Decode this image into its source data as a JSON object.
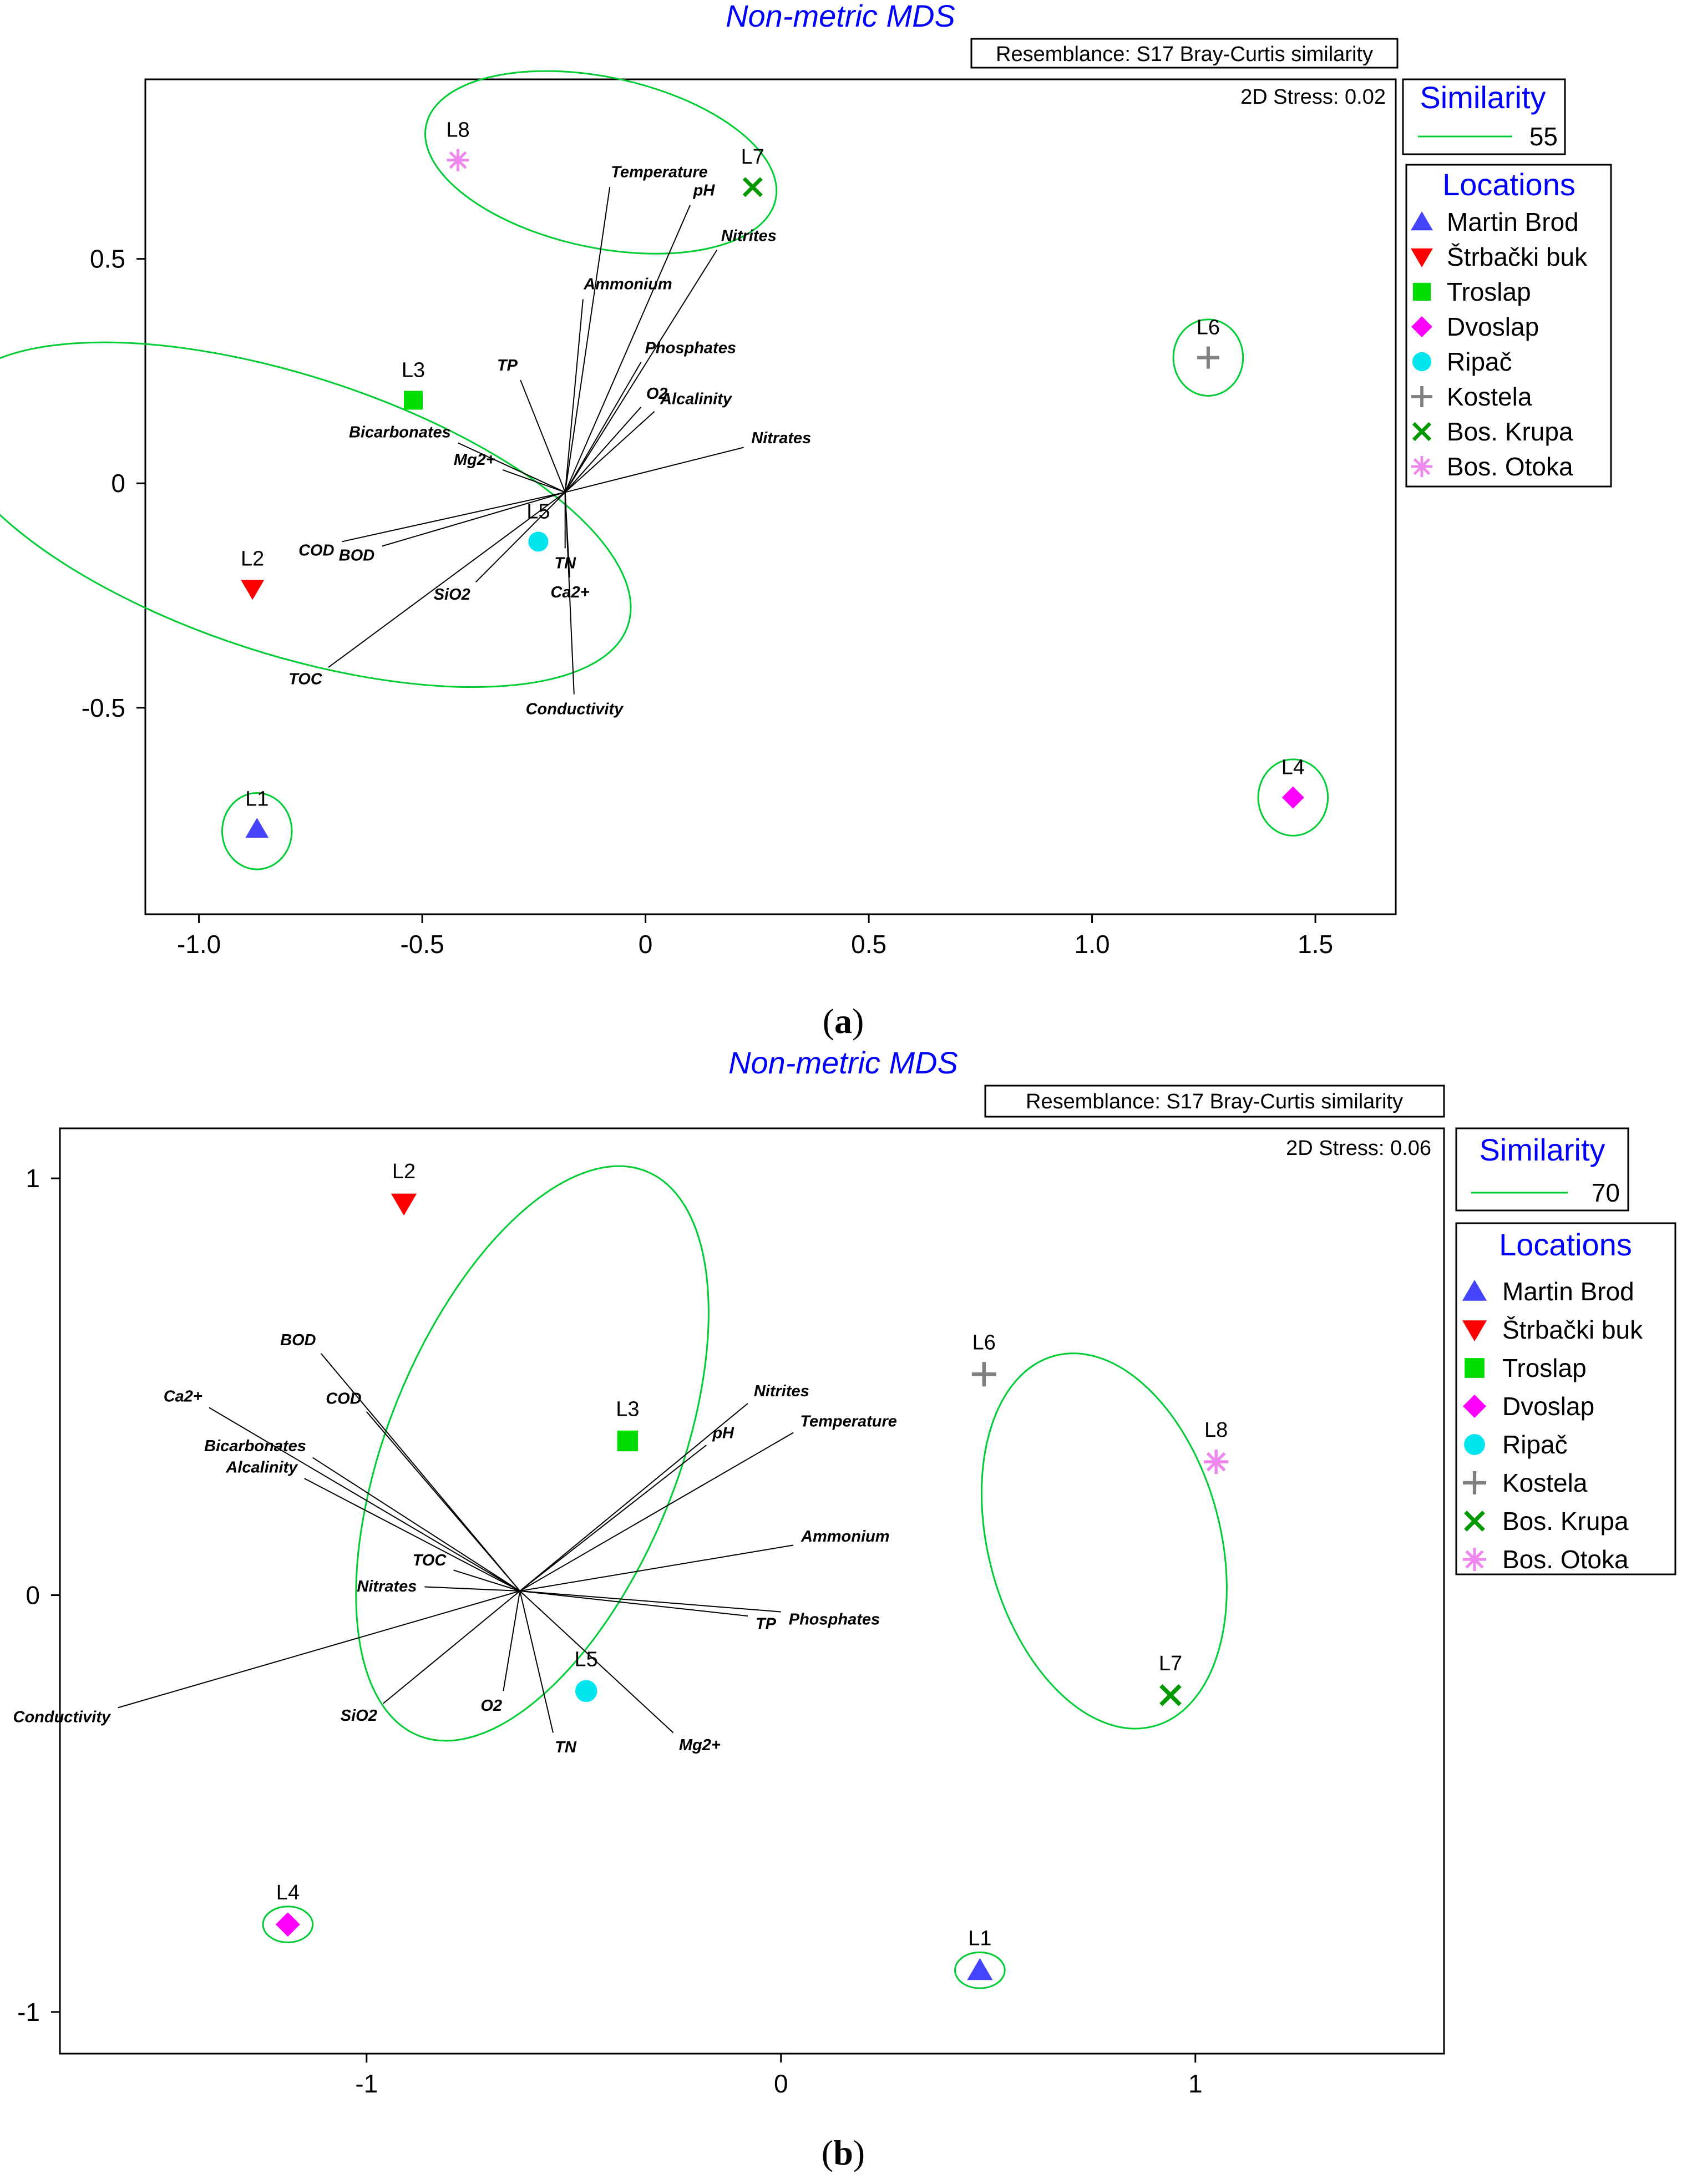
{
  "colors": {
    "title": "#0000ff",
    "cluster": "#00cc33",
    "vector": "#000000",
    "frame": "#000000"
  },
  "chart_data": [
    {
      "id": "a",
      "type": "scatter",
      "title": "Non-metric MDS",
      "panel_label": "a",
      "resemblance": "Resemblance: S17 Bray-Curtis similarity",
      "stress": "2D Stress: 0.02",
      "similarity": {
        "title": "Similarity",
        "value": "55"
      },
      "xlim": [
        -1.12,
        1.68
      ],
      "ylim": [
        -0.96,
        0.9
      ],
      "xticks": [
        {
          "v": -1.0,
          "label": "-1.0"
        },
        {
          "v": -0.5,
          "label": "-0.5"
        },
        {
          "v": 0,
          "label": "0"
        },
        {
          "v": 0.5,
          "label": "0.5"
        },
        {
          "v": 1.0,
          "label": "1.0"
        },
        {
          "v": 1.5,
          "label": "1.5"
        }
      ],
      "yticks": [
        {
          "v": -0.5,
          "label": "-0.5"
        },
        {
          "v": 0,
          "label": "0"
        },
        {
          "v": 0.5,
          "label": "0.5"
        }
      ],
      "points": [
        {
          "label": "L1",
          "location": "Martin Brod",
          "x": -0.87,
          "y": -0.77
        },
        {
          "label": "L2",
          "location": "Štrbački buk",
          "x": -0.88,
          "y": -0.235
        },
        {
          "label": "L3",
          "location": "Troslap",
          "x": -0.52,
          "y": 0.185
        },
        {
          "label": "L4",
          "location": "Dvoslap",
          "x": 1.45,
          "y": -0.7
        },
        {
          "label": "L5",
          "location": "Ripač",
          "x": -0.24,
          "y": -0.13
        },
        {
          "label": "L6",
          "location": "Kostela",
          "x": 1.26,
          "y": 0.28
        },
        {
          "label": "L7",
          "location": "Bos. Krupa",
          "x": 0.24,
          "y": 0.66
        },
        {
          "label": "L8",
          "location": "Bos. Otoka",
          "x": -0.42,
          "y": 0.72
        }
      ],
      "vector_origin": [
        -0.18,
        -0.02
      ],
      "vectors": [
        {
          "name": "Temperature",
          "x": -0.08,
          "y": 0.66
        },
        {
          "name": "pH",
          "x": 0.1,
          "y": 0.62
        },
        {
          "name": "Nitrites",
          "x": 0.16,
          "y": 0.52
        },
        {
          "name": "Ammonium",
          "x": -0.14,
          "y": 0.41
        },
        {
          "name": "Phosphates",
          "x": -0.01,
          "y": 0.27
        },
        {
          "name": "TP",
          "x": -0.28,
          "y": 0.23
        },
        {
          "name": "O2",
          "x": -0.01,
          "y": 0.17
        },
        {
          "name": "Alcalinity",
          "x": 0.02,
          "y": 0.16
        },
        {
          "name": "Bicarbonates",
          "x": -0.42,
          "y": 0.09
        },
        {
          "name": "Nitrates",
          "x": 0.22,
          "y": 0.08
        },
        {
          "name": "Mg2+",
          "x": -0.32,
          "y": 0.03
        },
        {
          "name": "COD",
          "x": -0.68,
          "y": -0.13
        },
        {
          "name": "BOD",
          "x": -0.59,
          "y": -0.14
        },
        {
          "name": "TN",
          "x": -0.18,
          "y": -0.145
        },
        {
          "name": "Ca2+",
          "x": -0.17,
          "y": -0.21
        },
        {
          "name": "SiO2",
          "x": -0.38,
          "y": -0.22
        },
        {
          "name": "TOC",
          "x": -0.71,
          "y": -0.41
        },
        {
          "name": "Conductivity",
          "x": -0.16,
          "y": -0.47
        }
      ],
      "clusters": [
        {
          "cx": -0.8,
          "cy": -0.07,
          "rx": 0.8,
          "ry": 0.31,
          "rot": 18
        },
        {
          "cx": -0.1,
          "cy": 0.715,
          "rx": 0.4,
          "ry": 0.19,
          "rot": 12
        },
        {
          "cx": 1.26,
          "cy": 0.28,
          "rx": 0.078,
          "ry": 0.085,
          "rot": 0
        },
        {
          "cx": 1.45,
          "cy": -0.7,
          "rx": 0.078,
          "ry": 0.085,
          "rot": 0
        },
        {
          "cx": -0.87,
          "cy": -0.775,
          "rx": 0.078,
          "ry": 0.085,
          "rot": 0
        }
      ],
      "legend": {
        "title": "Locations",
        "items": [
          {
            "label": "Martin Brod",
            "marker": "triangle-up",
            "color": "#4444ff"
          },
          {
            "label": "Štrbački buk",
            "marker": "triangle-down",
            "color": "#ff0000"
          },
          {
            "label": "Troslap",
            "marker": "square",
            "color": "#00dd00"
          },
          {
            "label": "Dvoslap",
            "marker": "diamond",
            "color": "#ff00ff"
          },
          {
            "label": "Ripač",
            "marker": "circle",
            "color": "#00e5ee"
          },
          {
            "label": "Kostela",
            "marker": "plus",
            "color": "#808080"
          },
          {
            "label": "Bos. Krupa",
            "marker": "x",
            "color": "#009900"
          },
          {
            "label": "Bos. Otoka",
            "marker": "asterisk",
            "color": "#ee88ee"
          }
        ]
      }
    },
    {
      "id": "b",
      "type": "scatter",
      "title": "Non-metric MDS",
      "panel_label": "b",
      "resemblance": "Resemblance: S17 Bray-Curtis similarity",
      "stress": "2D Stress: 0.06",
      "similarity": {
        "title": "Similarity",
        "value": "70"
      },
      "xlim": [
        -1.74,
        1.6
      ],
      "ylim": [
        -1.1,
        1.12
      ],
      "xticks": [
        {
          "v": -1,
          "label": "-1"
        },
        {
          "v": 0,
          "label": "0"
        },
        {
          "v": 1,
          "label": "1"
        }
      ],
      "yticks": [
        {
          "v": -1,
          "label": "-1"
        },
        {
          "v": 0,
          "label": "0"
        },
        {
          "v": 1,
          "label": "1"
        }
      ],
      "points": [
        {
          "label": "L1",
          "location": "Martin Brod",
          "x": 0.48,
          "y": -0.9
        },
        {
          "label": "L2",
          "location": "Štrbački buk",
          "x": -0.91,
          "y": 0.94
        },
        {
          "label": "L3",
          "location": "Troslap",
          "x": -0.37,
          "y": 0.37
        },
        {
          "label": "L4",
          "location": "Dvoslap",
          "x": -1.19,
          "y": -0.79
        },
        {
          "label": "L5",
          "location": "Ripač",
          "x": -0.47,
          "y": -0.23
        },
        {
          "label": "L6",
          "location": "Kostela",
          "x": 0.49,
          "y": 0.53
        },
        {
          "label": "L7",
          "location": "Bos. Krupa",
          "x": 0.94,
          "y": -0.24
        },
        {
          "label": "L8",
          "location": "Bos. Otoka",
          "x": 1.05,
          "y": 0.32
        }
      ],
      "vector_origin": [
        -0.63,
        0.01
      ],
      "vectors": [
        {
          "name": "BOD",
          "x": -1.11,
          "y": 0.58
        },
        {
          "name": "Ca2+",
          "x": -1.38,
          "y": 0.45
        },
        {
          "name": "COD",
          "x": -1.0,
          "y": 0.44
        },
        {
          "name": "Bicarbonates",
          "x": -1.13,
          "y": 0.33
        },
        {
          "name": "Alcalinity",
          "x": -1.15,
          "y": 0.28
        },
        {
          "name": "Nitrites",
          "x": -0.08,
          "y": 0.46
        },
        {
          "name": "pH",
          "x": -0.18,
          "y": 0.36
        },
        {
          "name": "Temperature",
          "x": 0.03,
          "y": 0.39
        },
        {
          "name": "Ammonium",
          "x": 0.03,
          "y": 0.12
        },
        {
          "name": "TOC",
          "x": -0.79,
          "y": 0.06
        },
        {
          "name": "Nitrates",
          "x": -0.86,
          "y": 0.02
        },
        {
          "name": "TP",
          "x": -0.08,
          "y": -0.05
        },
        {
          "name": "Phosphates",
          "x": 0.0,
          "y": -0.04
        },
        {
          "name": "Conductivity",
          "x": -1.6,
          "y": -0.27
        },
        {
          "name": "SiO2",
          "x": -0.96,
          "y": -0.26
        },
        {
          "name": "O2",
          "x": -0.67,
          "y": -0.23
        },
        {
          "name": "TN",
          "x": -0.55,
          "y": -0.33
        },
        {
          "name": "Mg2+",
          "x": -0.26,
          "y": -0.33
        }
      ],
      "clusters": [
        {
          "cx": -0.6,
          "cy": 0.34,
          "rx": 0.35,
          "ry": 0.73,
          "rot": 22
        },
        {
          "cx": 0.78,
          "cy": 0.13,
          "rx": 0.28,
          "ry": 0.46,
          "rot": -15
        },
        {
          "cx": -1.19,
          "cy": -0.79,
          "rx": 0.06,
          "ry": 0.043,
          "rot": 0
        },
        {
          "cx": 0.48,
          "cy": -0.9,
          "rx": 0.06,
          "ry": 0.043,
          "rot": 0
        }
      ],
      "legend": {
        "title": "Locations",
        "items": [
          {
            "label": "Martin Brod",
            "marker": "triangle-up",
            "color": "#4444ff"
          },
          {
            "label": "Štrbački buk",
            "marker": "triangle-down",
            "color": "#ff0000"
          },
          {
            "label": "Troslap",
            "marker": "square",
            "color": "#00dd00"
          },
          {
            "label": "Dvoslap",
            "marker": "diamond",
            "color": "#ff00ff"
          },
          {
            "label": "Ripač",
            "marker": "circle",
            "color": "#00e5ee"
          },
          {
            "label": "Kostela",
            "marker": "plus",
            "color": "#808080"
          },
          {
            "label": "Bos. Krupa",
            "marker": "x",
            "color": "#009900"
          },
          {
            "label": "Bos. Otoka",
            "marker": "asterisk",
            "color": "#ee88ee"
          }
        ]
      }
    }
  ]
}
